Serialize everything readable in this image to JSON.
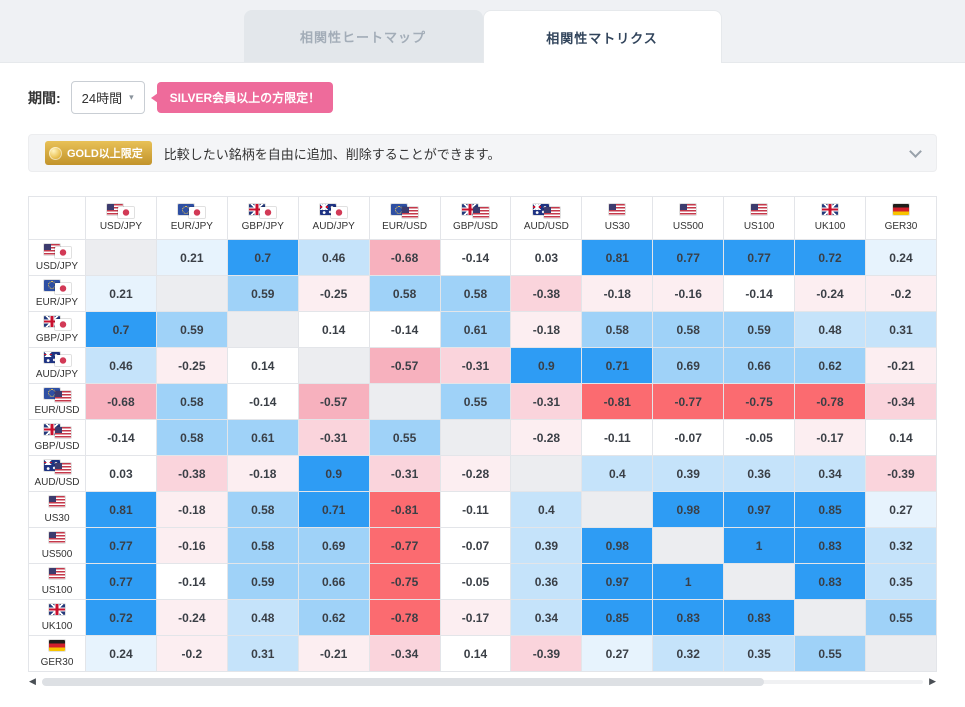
{
  "tabs": [
    {
      "label": "相関性ヒートマップ",
      "active": false
    },
    {
      "label": "相関性マトリクス",
      "active": true
    }
  ],
  "controls": {
    "period_label": "期間:",
    "period_value": "24時間",
    "silver_badge": "SILVER会員以上の方限定！"
  },
  "gold_banner": {
    "badge": "GOLD以上限定",
    "text": "比較したい銘柄を自由に追加、削除することができます。"
  },
  "icons": {
    "dropdown_caret": "▾",
    "scroll_left": "◀",
    "scroll_right": "▶"
  },
  "matrix": {
    "symbols": [
      {
        "code": "USD/JPY",
        "flags": [
          "us",
          "jp"
        ]
      },
      {
        "code": "EUR/JPY",
        "flags": [
          "eu",
          "jp"
        ]
      },
      {
        "code": "GBP/JPY",
        "flags": [
          "gb",
          "jp"
        ]
      },
      {
        "code": "AUD/JPY",
        "flags": [
          "au",
          "jp"
        ]
      },
      {
        "code": "EUR/USD",
        "flags": [
          "eu",
          "us"
        ]
      },
      {
        "code": "GBP/USD",
        "flags": [
          "gb",
          "us"
        ]
      },
      {
        "code": "AUD/USD",
        "flags": [
          "au",
          "us"
        ]
      },
      {
        "code": "US30",
        "flags": [
          "us"
        ]
      },
      {
        "code": "US500",
        "flags": [
          "us"
        ]
      },
      {
        "code": "US100",
        "flags": [
          "us"
        ]
      },
      {
        "code": "UK100",
        "flags": [
          "gb"
        ]
      },
      {
        "code": "GER30",
        "flags": [
          "de"
        ]
      }
    ],
    "values": [
      [
        null,
        0.21,
        0.7,
        0.46,
        -0.68,
        -0.14,
        0.03,
        0.81,
        0.77,
        0.77,
        0.72,
        0.24
      ],
      [
        0.21,
        null,
        0.59,
        -0.25,
        0.58,
        0.58,
        -0.38,
        -0.18,
        -0.16,
        -0.14,
        -0.24,
        -0.2
      ],
      [
        0.7,
        0.59,
        null,
        0.14,
        -0.14,
        0.61,
        -0.18,
        0.58,
        0.58,
        0.59,
        0.48,
        0.31
      ],
      [
        0.46,
        -0.25,
        0.14,
        null,
        -0.57,
        -0.31,
        0.9,
        0.71,
        0.69,
        0.66,
        0.62,
        -0.21
      ],
      [
        -0.68,
        0.58,
        -0.14,
        -0.57,
        null,
        0.55,
        -0.31,
        -0.81,
        -0.77,
        -0.75,
        -0.78,
        -0.34
      ],
      [
        -0.14,
        0.58,
        0.61,
        -0.31,
        0.55,
        null,
        -0.28,
        -0.11,
        -0.07,
        -0.05,
        -0.17,
        0.14
      ],
      [
        0.03,
        -0.38,
        -0.18,
        0.9,
        -0.31,
        -0.28,
        null,
        0.4,
        0.39,
        0.36,
        0.34,
        -0.39
      ],
      [
        0.81,
        -0.18,
        0.58,
        0.71,
        -0.81,
        -0.11,
        0.4,
        null,
        0.98,
        0.97,
        0.85,
        0.27
      ],
      [
        0.77,
        -0.16,
        0.58,
        0.69,
        -0.77,
        -0.07,
        0.39,
        0.98,
        null,
        1,
        0.83,
        0.32
      ],
      [
        0.77,
        -0.14,
        0.59,
        0.66,
        -0.75,
        -0.05,
        0.36,
        0.97,
        1,
        null,
        0.83,
        0.35
      ],
      [
        0.72,
        -0.24,
        0.48,
        0.62,
        -0.78,
        -0.17,
        0.34,
        0.85,
        0.83,
        0.83,
        null,
        0.55
      ],
      [
        0.24,
        -0.2,
        0.31,
        -0.21,
        -0.34,
        0.14,
        -0.39,
        0.27,
        0.32,
        0.35,
        0.55,
        null
      ]
    ]
  },
  "colors": {
    "positive_ramp": [
      "#E7F3FD",
      "#C5E3FA",
      "#9FD2F8",
      "#2E9CF4"
    ],
    "negative_ramp": [
      "#FCEEF1",
      "#FAD4DC",
      "#F7B1BE",
      "#FB6B70"
    ],
    "diagonal": "#ECEDF0",
    "badge_pink": "#EE6B9B",
    "accent_blue": "#2E9CF4"
  }
}
